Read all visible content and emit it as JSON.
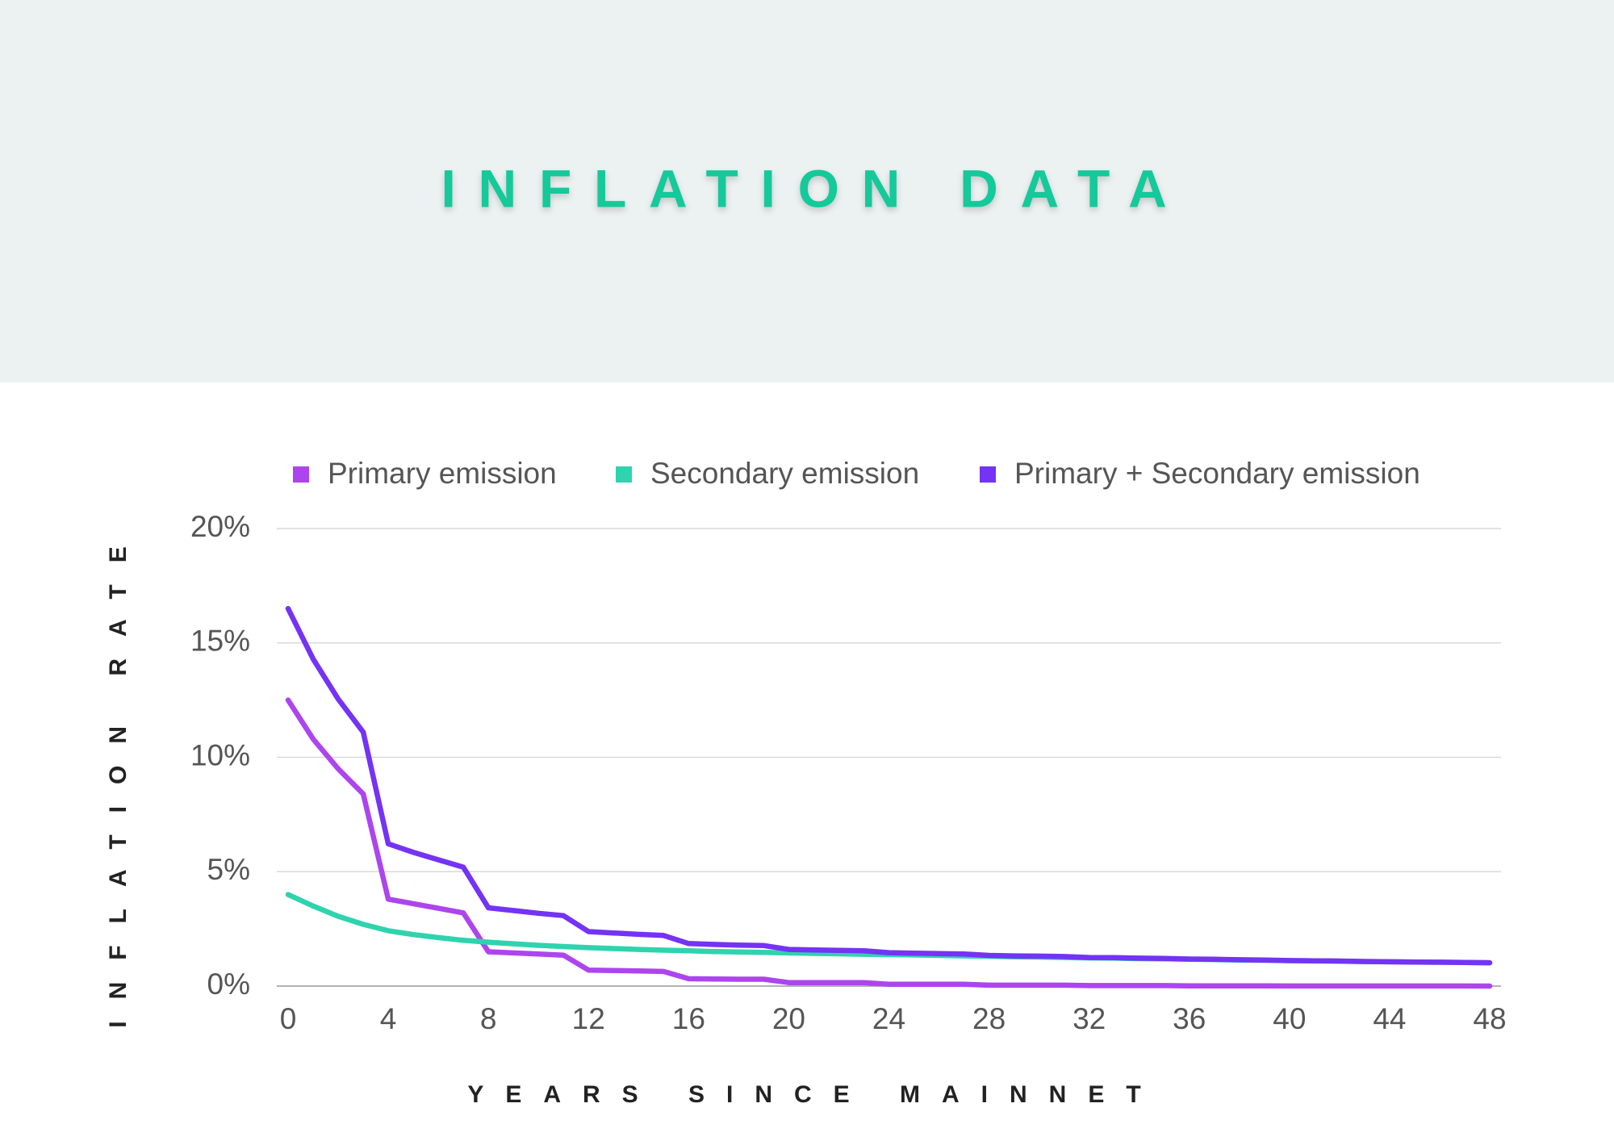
{
  "chart_data": {
    "type": "line",
    "title": "INFLATION DATA",
    "x_label": "YEARS SINCE MAINNET",
    "y_label": "INFLATION RATE",
    "x": [
      0,
      1,
      2,
      3,
      4,
      5,
      6,
      7,
      8,
      9,
      10,
      11,
      12,
      13,
      14,
      15,
      16,
      17,
      18,
      19,
      20,
      21,
      22,
      23,
      24,
      25,
      26,
      27,
      28,
      29,
      30,
      31,
      32,
      33,
      34,
      35,
      36,
      37,
      38,
      39,
      40,
      41,
      42,
      43,
      44,
      45,
      46,
      47,
      48
    ],
    "series": [
      {
        "name": "Primary emission",
        "color": "#ad45ee",
        "values": [
          12.5,
          10.8,
          9.5,
          8.4,
          3.8,
          3.6,
          3.4,
          3.2,
          1.5,
          1.45,
          1.4,
          1.35,
          0.7,
          0.68,
          0.66,
          0.64,
          0.32,
          0.31,
          0.3,
          0.3,
          0.15,
          0.15,
          0.15,
          0.15,
          0.08,
          0.08,
          0.08,
          0.08,
          0.04,
          0.04,
          0.04,
          0.04,
          0.02,
          0.02,
          0.02,
          0.02,
          0.01,
          0.01,
          0.01,
          0.01,
          0.005,
          0.005,
          0.005,
          0.005,
          0.0025,
          0.0025,
          0.0025,
          0.0025,
          0.001
        ]
      },
      {
        "name": "Secondary emission",
        "color": "#2fd3ae",
        "values": [
          4.0,
          3.5,
          3.05,
          2.7,
          2.42,
          2.25,
          2.12,
          2.0,
          1.92,
          1.85,
          1.78,
          1.73,
          1.68,
          1.64,
          1.6,
          1.57,
          1.54,
          1.51,
          1.49,
          1.47,
          1.45,
          1.43,
          1.41,
          1.39,
          1.38,
          1.36,
          1.34,
          1.32,
          1.3,
          1.28,
          1.27,
          1.25,
          1.23,
          1.22,
          1.2,
          1.19,
          1.17,
          1.16,
          1.14,
          1.13,
          1.11,
          1.1,
          1.09,
          1.07,
          1.06,
          1.05,
          1.04,
          1.03,
          1.02
        ]
      },
      {
        "name": "Primary + Secondary emission",
        "color": "#7433f5",
        "values": [
          16.5,
          14.3,
          12.55,
          11.1,
          6.22,
          5.85,
          5.52,
          5.2,
          3.42,
          3.3,
          3.18,
          3.08,
          2.38,
          2.32,
          2.26,
          2.21,
          1.86,
          1.82,
          1.79,
          1.77,
          1.6,
          1.58,
          1.56,
          1.54,
          1.46,
          1.44,
          1.42,
          1.4,
          1.34,
          1.32,
          1.31,
          1.29,
          1.25,
          1.24,
          1.22,
          1.21,
          1.18,
          1.17,
          1.15,
          1.14,
          1.115,
          1.105,
          1.095,
          1.075,
          1.0625,
          1.0525,
          1.0425,
          1.0325,
          1.021
        ]
      }
    ],
    "xlim": [
      0,
      48
    ],
    "xticks": [
      0,
      4,
      8,
      12,
      16,
      20,
      24,
      28,
      32,
      36,
      40,
      44,
      48
    ],
    "ylim": [
      0,
      20
    ],
    "yticks": [
      {
        "value": 0,
        "label": "0%"
      },
      {
        "value": 5,
        "label": "5%"
      },
      {
        "value": 10,
        "label": "10%"
      },
      {
        "value": 15,
        "label": "15%"
      },
      {
        "value": 20,
        "label": "20%"
      }
    ],
    "grid": true,
    "legend": "top"
  }
}
